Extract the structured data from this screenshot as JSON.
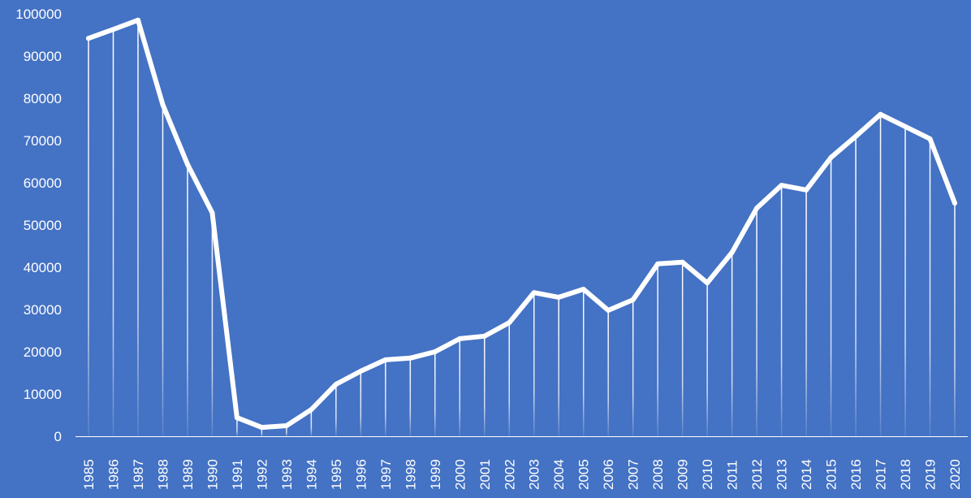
{
  "chart_data": {
    "type": "line",
    "title": "",
    "xlabel": "",
    "ylabel": "",
    "ylim": [
      0,
      100000
    ],
    "yticks": [
      0,
      10000,
      20000,
      30000,
      40000,
      50000,
      60000,
      70000,
      80000,
      90000,
      100000
    ],
    "grid": false,
    "drop_lines": true,
    "colors": {
      "background": "#4472C4",
      "line": "#FFFFFF"
    },
    "categories": [
      "1985",
      "1986",
      "1987",
      "1988",
      "1989",
      "1990",
      "1991",
      "1992",
      "1993",
      "1994",
      "1995",
      "1996",
      "1997",
      "1998",
      "1999",
      "2000",
      "2001",
      "2002",
      "2003",
      "2004",
      "2005",
      "2006",
      "2007",
      "2008",
      "2009",
      "2010",
      "2011",
      "2012",
      "2013",
      "2014",
      "2015",
      "2016",
      "2017",
      "2018",
      "2019",
      "2020"
    ],
    "values": [
      94200,
      96300,
      98500,
      78500,
      64400,
      52900,
      4400,
      2100,
      2500,
      6300,
      12300,
      15400,
      18100,
      18500,
      20000,
      23100,
      23700,
      26900,
      34000,
      32900,
      34800,
      29800,
      32300,
      40800,
      41200,
      36300,
      43500,
      54000,
      59400,
      58300,
      66000,
      71000,
      76200,
      73300,
      70400,
      55200
    ]
  }
}
